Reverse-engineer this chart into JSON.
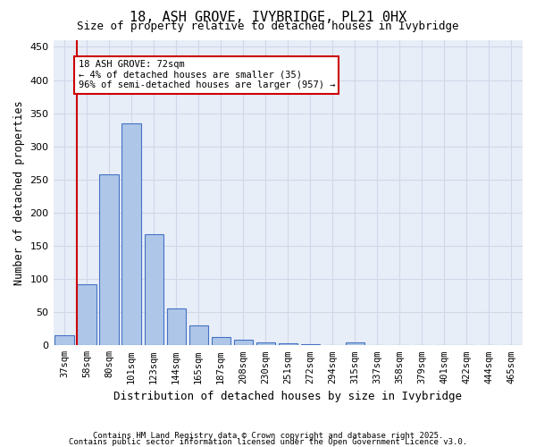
{
  "title": "18, ASH GROVE, IVYBRIDGE, PL21 0HX",
  "subtitle": "Size of property relative to detached houses in Ivybridge",
  "xlabel": "Distribution of detached houses by size in Ivybridge",
  "ylabel": "Number of detached properties",
  "footnote1": "Contains HM Land Registry data © Crown copyright and database right 2025.",
  "footnote2": "Contains public sector information licensed under the Open Government Licence v3.0.",
  "bin_labels": [
    "37sqm",
    "58sqm",
    "80sqm",
    "101sqm",
    "123sqm",
    "144sqm",
    "165sqm",
    "187sqm",
    "208sqm",
    "230sqm",
    "251sqm",
    "272sqm",
    "294sqm",
    "315sqm",
    "337sqm",
    "358sqm",
    "379sqm",
    "401sqm",
    "422sqm",
    "444sqm",
    "465sqm"
  ],
  "bar_values": [
    15,
    92,
    258,
    335,
    168,
    55,
    30,
    13,
    8,
    4,
    3,
    2,
    0,
    5,
    0,
    0,
    0,
    0,
    0,
    0,
    1
  ],
  "bar_color": "#aec6e8",
  "bar_edge_color": "#4472c4",
  "grid_color": "#d0d8e8",
  "background_color": "#e8eef8",
  "red_line_x": 1,
  "annotation_text": "18 ASH GROVE: 72sqm\n← 4% of detached houses are smaller (35)\n96% of semi-detached houses are larger (957) →",
  "annotation_box_color": "#ffffff",
  "annotation_box_edge": "#cc0000",
  "ylim": [
    0,
    460
  ],
  "yticks": [
    0,
    50,
    100,
    150,
    200,
    250,
    300,
    350,
    400,
    450
  ]
}
